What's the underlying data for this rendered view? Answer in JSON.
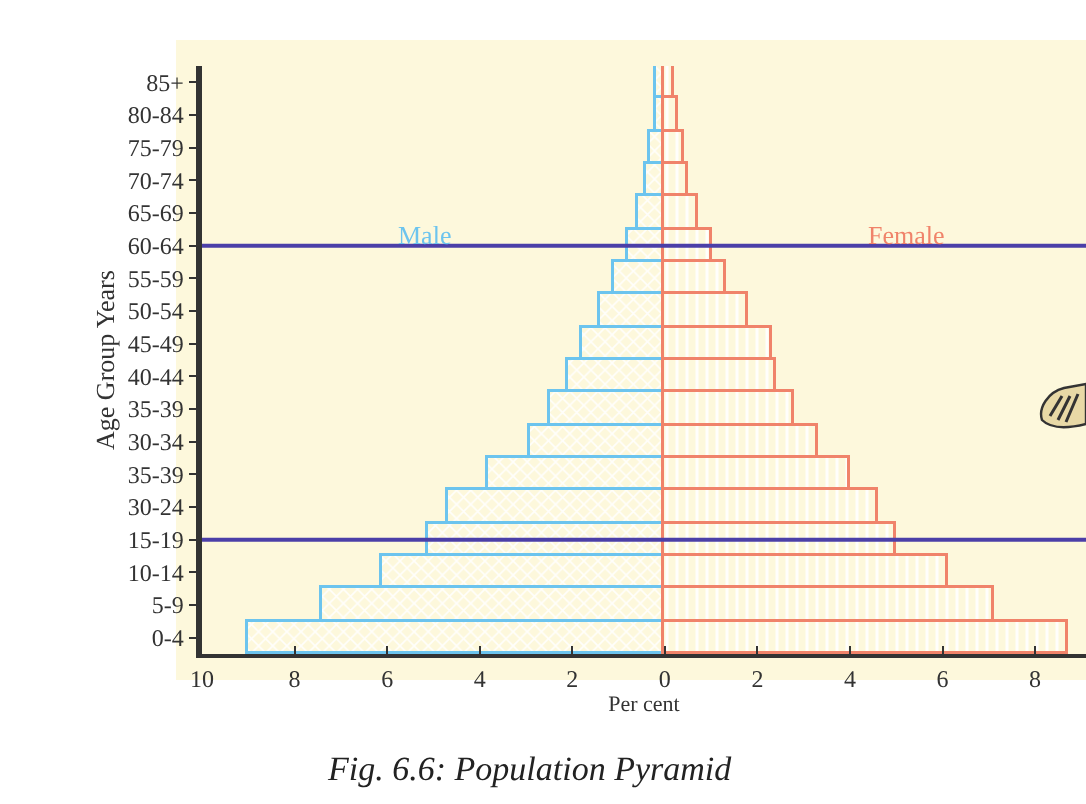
{
  "chart_data": {
    "type": "bar",
    "orientation": "horizontal",
    "title": "Fig. 6.6: Population Pyramid",
    "xlabel": "Per cent",
    "ylabel": "Age Group Years",
    "categories": [
      "85+",
      "80-84",
      "75-79",
      "70-74",
      "65-69",
      "60-64",
      "55-59",
      "50-54",
      "45-49",
      "40-44",
      "35-39",
      "30-34",
      "35-39",
      "30-24",
      "15-19",
      "10-14",
      "5-9",
      "0-4"
    ],
    "series": [
      {
        "name": "Male",
        "color": "#6cc4ee",
        "values": [
          -0.2,
          -0.2,
          -0.3,
          -0.4,
          -0.6,
          -0.8,
          -1.1,
          -1.4,
          -1.8,
          -2.1,
          -2.5,
          -2.9,
          -3.8,
          -4.7,
          -5.1,
          -6.1,
          -7.4,
          -9.0
        ]
      },
      {
        "name": "Female",
        "color": "#f0836a",
        "values": [
          0.2,
          0.3,
          0.4,
          0.5,
          0.7,
          1.0,
          1.3,
          1.8,
          2.3,
          2.4,
          2.8,
          3.3,
          4.0,
          4.6,
          5.0,
          6.1,
          7.1,
          8.7
        ]
      }
    ],
    "stacked": true,
    "xlim": [
      -10,
      9.1
    ],
    "xticks": [
      {
        "value": -10,
        "label": "10"
      },
      {
        "value": -8,
        "label": "8"
      },
      {
        "value": -6,
        "label": "6"
      },
      {
        "value": -4,
        "label": "4"
      },
      {
        "value": -2,
        "label": "2"
      },
      0,
      2,
      4,
      6,
      8
    ],
    "ref_lines": [
      {
        "axis": "y",
        "value": "60-64",
        "color": "#4b3fa8"
      },
      {
        "axis": "y",
        "value": "15-19",
        "color": "#4b3fa8"
      }
    ],
    "grid": false,
    "legend": false
  }
}
